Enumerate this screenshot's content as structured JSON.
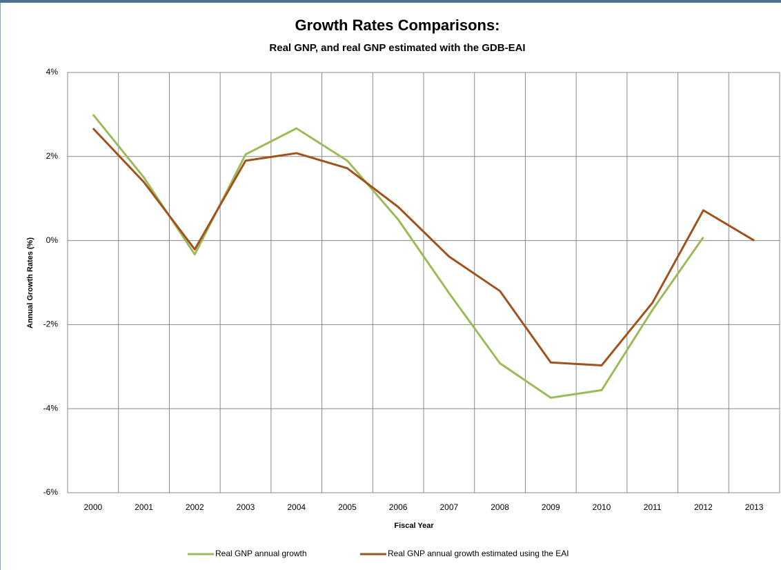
{
  "chart_data": {
    "type": "line",
    "title": "Growth Rates Comparisons:",
    "subtitle": "Real GNP, and real GNP estimated with the GDB-EAI",
    "x_label": "Fiscal Year",
    "y_label": "Annual Growth Rates (%)",
    "categories": [
      "2000",
      "2001",
      "2002",
      "2003",
      "2004",
      "2005",
      "2006",
      "2007",
      "2008",
      "2009",
      "2010",
      "2011",
      "2012",
      "2013"
    ],
    "series": [
      {
        "name": "Real GNP  annual growth",
        "color": "#9bbb59",
        "values": [
          3.0,
          1.5,
          -0.33,
          2.05,
          2.67,
          1.9,
          0.5,
          -1.25,
          -2.92,
          -3.74,
          -3.56,
          -1.65,
          0.08,
          null
        ]
      },
      {
        "name": "Real GNP  annual growth estimated  using the EAI",
        "color": "#a0521c",
        "values": [
          2.67,
          1.39,
          -0.21,
          1.9,
          2.08,
          1.72,
          0.8,
          -0.38,
          -1.2,
          -2.9,
          -2.97,
          -1.48,
          0.72,
          0
        ]
      }
    ],
    "ylim": [
      -6,
      4
    ],
    "yticks": [
      {
        "value": -6,
        "label": "-6%"
      },
      {
        "value": -4,
        "label": "-4%"
      },
      {
        "value": -2,
        "label": "-2%"
      },
      {
        "value": 0,
        "label": "0%"
      },
      {
        "value": 2,
        "label": "2%"
      },
      {
        "value": 4,
        "label": "4%"
      }
    ],
    "grid": true,
    "legend": "bottom"
  }
}
